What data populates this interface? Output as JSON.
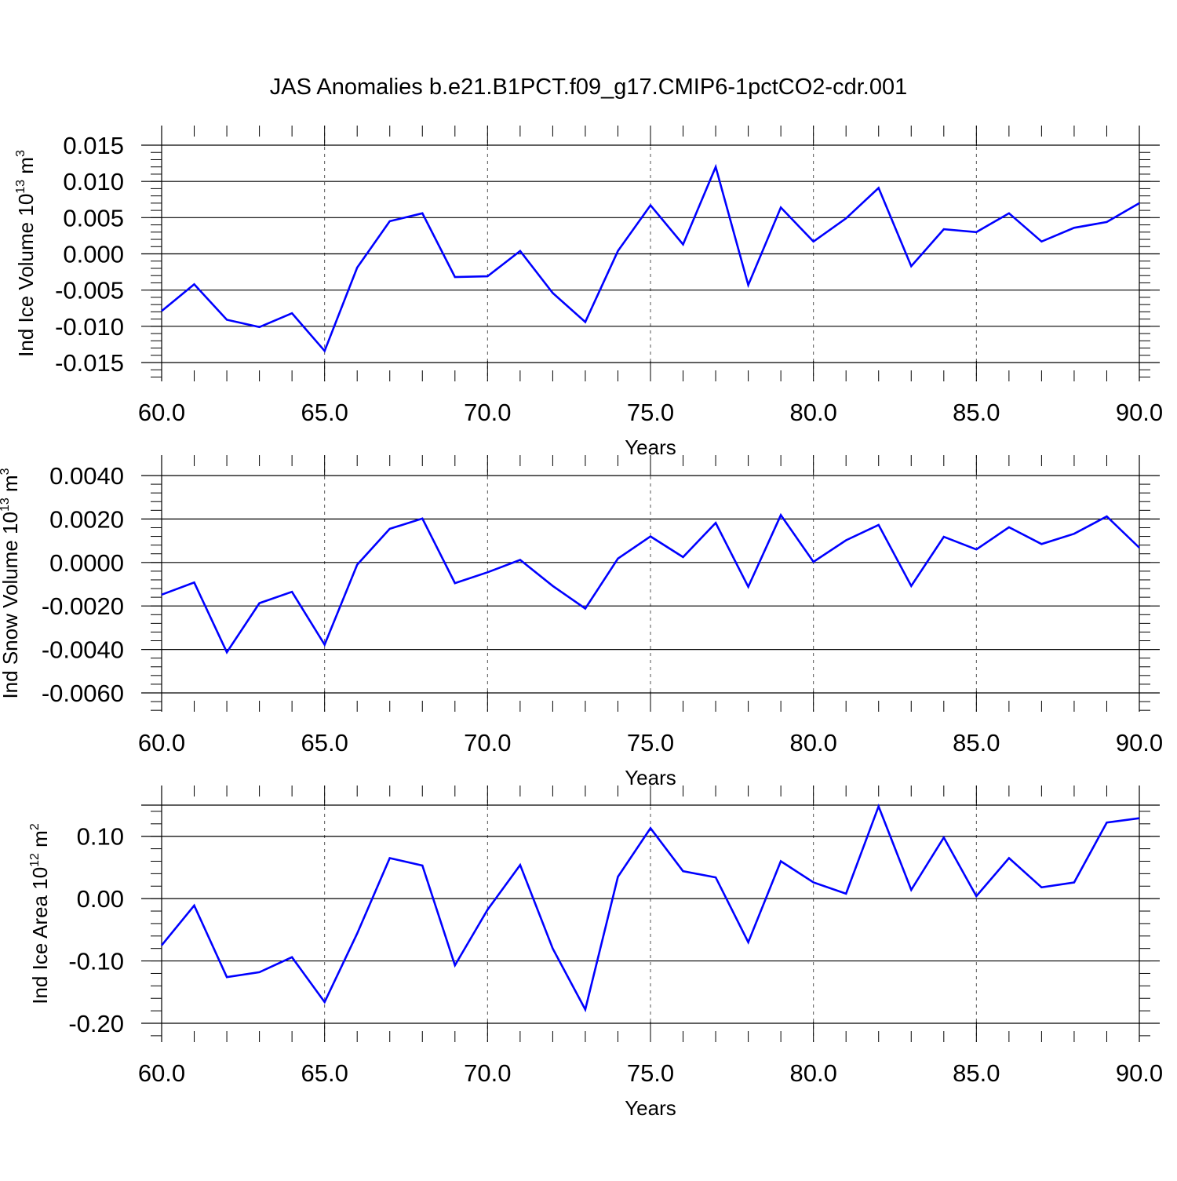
{
  "title": "JAS Anomalies b.e21.B1PCT.f09_g17.CMIP6-1pctCO2-cdr.001",
  "colors": {
    "line": "#0000ff",
    "axis": "#000000",
    "grid": "#555555"
  },
  "chart_data": [
    {
      "type": "line",
      "ylabel": "Ind Ice Volume 10",
      "ylabel_exponent": "13",
      "ylabel_unit": "m",
      "ylabel_unit_exponent": "3",
      "xlabel": "Years",
      "xlim": [
        60,
        90
      ],
      "ylim": [
        -0.0155,
        0.0152
      ],
      "xticks": [
        60,
        65,
        70,
        75,
        80,
        85,
        90
      ],
      "xtick_labels": [
        "60.0",
        "65.0",
        "70.0",
        "75.0",
        "80.0",
        "85.0",
        "90.0"
      ],
      "yticks": [
        -0.015,
        -0.01,
        -0.005,
        0.0,
        0.005,
        0.01,
        0.015
      ],
      "ytick_labels": [
        "-0.015",
        "-0.010",
        "-0.005",
        "0.000",
        "0.005",
        "0.010",
        "0.015"
      ],
      "grid": "vertical dashed at major x ticks",
      "series": [
        {
          "x": [
            60,
            61,
            62,
            63,
            64,
            65,
            66,
            67,
            68,
            69,
            70,
            71,
            72,
            73,
            74,
            75,
            76,
            77,
            78,
            79,
            80,
            81,
            82,
            83,
            84,
            85,
            86,
            87,
            88,
            89,
            90
          ],
          "values": [
            -0.0079,
            -0.0042,
            -0.0091,
            -0.0101,
            -0.0082,
            -0.0134,
            -0.0019,
            0.0045,
            0.0056,
            -0.0032,
            -0.0031,
            0.0004,
            -0.0054,
            -0.0094,
            0.0004,
            0.0067,
            0.0013,
            0.012,
            -0.0043,
            0.0064,
            0.0017,
            0.0049,
            0.0091,
            -0.0017,
            0.0034,
            0.003,
            0.0056,
            0.0017,
            0.0036,
            0.0044,
            0.007
          ]
        }
      ]
    },
    {
      "type": "line",
      "ylabel": "Ind Snow Volume 10",
      "ylabel_exponent": "13",
      "ylabel_unit": "m",
      "ylabel_unit_exponent": "3",
      "xlabel": "Years",
      "xlim": [
        60,
        90
      ],
      "ylim": [
        -0.006,
        0.004
      ],
      "xticks": [
        60,
        65,
        70,
        75,
        80,
        85,
        90
      ],
      "xtick_labels": [
        "60.0",
        "65.0",
        "70.0",
        "75.0",
        "80.0",
        "85.0",
        "90.0"
      ],
      "yticks": [
        -0.006,
        -0.004,
        -0.002,
        0.0,
        0.002,
        0.004
      ],
      "ytick_labels": [
        "-0.0060",
        "-0.0040",
        "-0.0020",
        "0.0000",
        "0.0020",
        "0.0040"
      ],
      "grid": "vertical dashed at major x ticks",
      "series": [
        {
          "x": [
            60,
            61,
            62,
            63,
            64,
            65,
            66,
            67,
            68,
            69,
            70,
            71,
            72,
            73,
            74,
            75,
            76,
            77,
            78,
            79,
            80,
            81,
            82,
            83,
            84,
            85,
            86,
            87,
            88,
            89,
            90
          ],
          "values": [
            -0.00148,
            -0.00092,
            -0.00413,
            -0.00187,
            -0.00135,
            -0.00378,
            -0.0001,
            0.00155,
            0.00202,
            -0.00095,
            -0.00045,
            0.00012,
            -0.00108,
            -0.00212,
            0.00018,
            0.0012,
            0.00025,
            0.00182,
            -0.00112,
            0.00218,
            3e-05,
            0.00102,
            0.00173,
            -0.00108,
            0.00118,
            0.0006,
            0.00162,
            0.00085,
            0.00132,
            0.00212,
            0.00068
          ]
        }
      ]
    },
    {
      "type": "line",
      "ylabel": "Ind Ice Area 10",
      "ylabel_exponent": "12",
      "ylabel_unit": "m",
      "ylabel_unit_exponent": "2",
      "xlabel": "Years",
      "xlim": [
        60,
        90
      ],
      "ylim": [
        -0.2,
        0.15
      ],
      "xticks": [
        60,
        65,
        70,
        75,
        80,
        85,
        90
      ],
      "xtick_labels": [
        "60.0",
        "65.0",
        "70.0",
        "75.0",
        "80.0",
        "85.0",
        "90.0"
      ],
      "yticks": [
        -0.2,
        -0.1,
        0.0,
        0.1
      ],
      "ytick_labels": [
        "-0.20",
        "-0.10",
        "0.00",
        "0.10"
      ],
      "grid": "vertical dashed at major x ticks",
      "series": [
        {
          "x": [
            60,
            61,
            62,
            63,
            64,
            65,
            66,
            67,
            68,
            69,
            70,
            71,
            72,
            73,
            74,
            75,
            76,
            77,
            78,
            79,
            80,
            81,
            82,
            83,
            84,
            85,
            86,
            87,
            88,
            89,
            90
          ],
          "values": [
            -0.075,
            -0.011,
            -0.126,
            -0.118,
            -0.094,
            -0.166,
            -0.056,
            0.065,
            0.053,
            -0.107,
            -0.018,
            0.054,
            -0.08,
            -0.178,
            0.035,
            0.113,
            0.044,
            0.034,
            -0.07,
            0.06,
            0.026,
            0.008,
            0.148,
            0.014,
            0.098,
            0.004,
            0.065,
            0.018,
            0.026,
            0.122,
            0.129
          ]
        }
      ]
    }
  ]
}
